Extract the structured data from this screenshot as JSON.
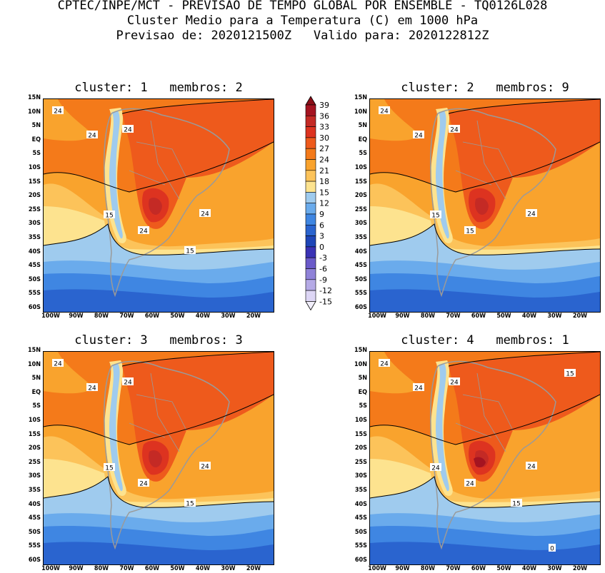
{
  "header": {
    "line1": "CPTEC/INPE/MCT - PREVISAO DE TEMPO GLOBAL POR ENSEMBLE - TQ0126L028",
    "line2": "Cluster Medio para a Temperatura (C) em 1000 hPa",
    "line3": "Previsao de: 2020121500Z   Valido para: 2020122812Z"
  },
  "panels": [
    {
      "title": "cluster: 1   membros: 2"
    },
    {
      "title": "cluster: 2   membros: 9"
    },
    {
      "title": "cluster: 3   membros: 3"
    },
    {
      "title": "cluster: 4   membros: 1"
    }
  ],
  "lat_labels": [
    "15N",
    "10N",
    "5N",
    "EQ",
    "5S",
    "10S",
    "15S",
    "20S",
    "25S",
    "30S",
    "35S",
    "40S",
    "45S",
    "50S",
    "55S",
    "60S"
  ],
  "lon_labels": [
    "100W",
    "90W",
    "80W",
    "70W",
    "60W",
    "50W",
    "40W",
    "30W",
    "20W"
  ],
  "contour_labels": {
    "p1": [
      "24",
      "24",
      "24",
      "24",
      "24",
      "15",
      "15"
    ],
    "p2": [
      "24",
      "24",
      "24",
      "24",
      "15",
      "15"
    ],
    "p3": [
      "24",
      "24",
      "24",
      "24",
      "24",
      "15",
      "15"
    ],
    "p4": [
      "24",
      "24",
      "24",
      "24",
      "24",
      "24",
      "15",
      "15",
      "0"
    ]
  },
  "colorbar": {
    "levels": [
      "39",
      "36",
      "33",
      "30",
      "27",
      "24",
      "21",
      "18",
      "15",
      "12",
      "9",
      "6",
      "3",
      "0",
      "-3",
      "-6",
      "-9",
      "-12",
      "-15"
    ],
    "colors": {
      "c36": "#a51421",
      "c33": "#c42a25",
      "c30": "#dd3320",
      "c27": "#ee5a1c",
      "c24": "#f47a1a",
      "c21": "#f9a32d",
      "c18": "#fcc35a",
      "c15": "#fde38f",
      "c12": "#9fcbee",
      "c9": "#6aabec",
      "c6": "#3f86e2",
      "c3": "#2a64cf",
      "c0": "#1e46b8",
      "cm3": "#3a32b5",
      "cm6": "#6a5ac9",
      "cm9": "#8f82d8",
      "cm12": "#b5aae6",
      "cm15": "#ddd6f5"
    }
  },
  "map_colors": {
    "land_outline": "#9a9a9a",
    "contour": "#000000"
  }
}
